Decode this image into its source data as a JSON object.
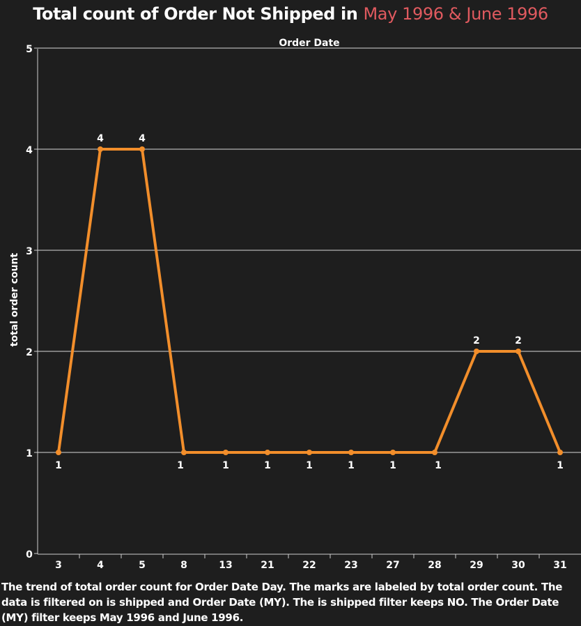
{
  "header": {
    "title_main": "Total count of Order Not Shipped in",
    "title_highlight": "May 1996 & June 1996",
    "highlight_color": "#e05a5f"
  },
  "caption": "The trend of total order count for Order Date Day.  The marks are labeled by total order count. The data is filtered on is shipped and Order Date (MY). The is shipped filter keeps NO. The Order Date (MY) filter keeps May 1996 and June 1996.",
  "chart_data": {
    "type": "line",
    "xlabel": "Order Date",
    "ylabel": "total order count",
    "categories": [
      "3",
      "4",
      "5",
      "8",
      "13",
      "21",
      "22",
      "23",
      "27",
      "28",
      "29",
      "30",
      "31"
    ],
    "values": [
      1,
      4,
      4,
      1,
      1,
      1,
      1,
      1,
      1,
      1,
      2,
      2,
      1
    ],
    "ylim": [
      0,
      5
    ],
    "yticks": [
      0,
      1,
      2,
      3,
      4,
      5
    ],
    "grid": true,
    "line_color": "#f28e2b",
    "background_color": "#1e1e1e",
    "legend": "none"
  }
}
